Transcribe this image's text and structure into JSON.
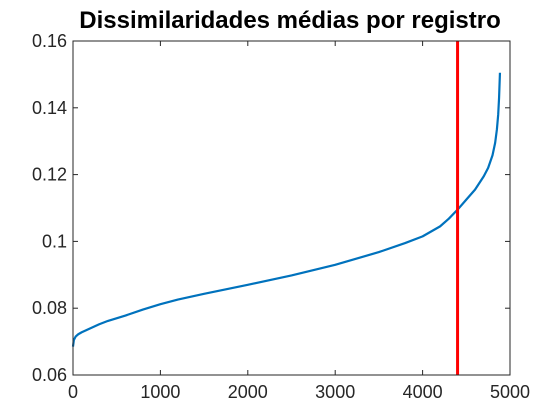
{
  "chart_data": {
    "type": "line",
    "title": "Dissimilaridades médias por registro",
    "xlabel": "",
    "ylabel": "",
    "xlim": [
      0,
      5000
    ],
    "ylim": [
      0.06,
      0.16
    ],
    "xticks": [
      0,
      1000,
      2000,
      3000,
      4000,
      5000
    ],
    "xtick_labels": [
      "0",
      "1000",
      "2000",
      "3000",
      "4000",
      "5000"
    ],
    "yticks": [
      0.06,
      0.08,
      0.1,
      0.12,
      0.14,
      0.16
    ],
    "ytick_labels": [
      "0.06",
      "0.08",
      "0.1",
      "0.12",
      "0.14",
      "0.16"
    ],
    "grid": false,
    "legend": "none",
    "series": [
      {
        "color": "#0072BD",
        "x": [
          0,
          10,
          30,
          60,
          100,
          200,
          300,
          400,
          600,
          800,
          1000,
          1200,
          1500,
          2000,
          2500,
          3000,
          3500,
          3800,
          4000,
          4200,
          4300,
          4400,
          4500,
          4600,
          4700,
          4750,
          4800,
          4830,
          4850,
          4865,
          4875,
          4885
        ],
        "y": [
          0.0685,
          0.0705,
          0.0715,
          0.0722,
          0.0728,
          0.074,
          0.0752,
          0.0762,
          0.0778,
          0.0796,
          0.0812,
          0.0826,
          0.0843,
          0.087,
          0.0898,
          0.093,
          0.0968,
          0.0995,
          0.1015,
          0.1045,
          0.1068,
          0.1095,
          0.1125,
          0.1155,
          0.1195,
          0.122,
          0.1258,
          0.1295,
          0.1335,
          0.138,
          0.143,
          0.1505
        ]
      },
      {
        "color": "#FF0000",
        "x": [
          4400,
          4400
        ],
        "y": [
          0.06,
          0.16
        ]
      }
    ]
  },
  "colors": {
    "line": "#0072BD",
    "marker_line": "#FF0000",
    "axes": "#262626"
  }
}
